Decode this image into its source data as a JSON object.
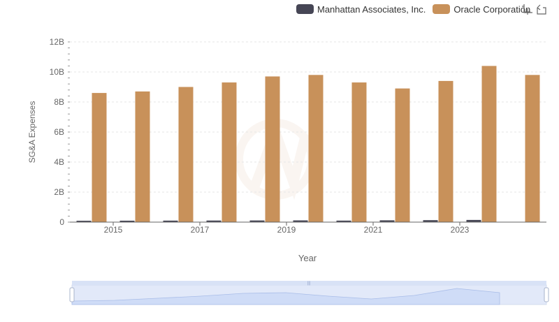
{
  "legend": {
    "items": [
      {
        "label": "Manhattan Associates, Inc.",
        "color": "#464655"
      },
      {
        "label": "Oracle Corporation",
        "color": "#c8915a"
      }
    ]
  },
  "toolbox": {
    "icons": [
      "zoom-icon",
      "restore-icon"
    ]
  },
  "chart_data": {
    "type": "bar",
    "xlabel": "Year",
    "ylabel": "SG&A Expenses",
    "ylim": [
      0,
      12000000000
    ],
    "y_ticks": [
      "0",
      "2B",
      "4B",
      "6B",
      "8B",
      "10B",
      "12B"
    ],
    "x_tick_labels": [
      "2015",
      "2017",
      "2019",
      "2021",
      "2023"
    ],
    "categories": [
      "2014",
      "2015",
      "2016",
      "2017",
      "2018",
      "2019",
      "2020",
      "2021",
      "2022",
      "2023",
      "2024"
    ],
    "series": [
      {
        "name": "Manhattan Associates, Inc.",
        "color": "#464655",
        "values": [
          90000000,
          95000000,
          100000000,
          105000000,
          110000000,
          115000000,
          100000000,
          120000000,
          130000000,
          145000000,
          null
        ]
      },
      {
        "name": "Oracle Corporation",
        "color": "#c8915a",
        "values": [
          8600000000,
          8700000000,
          9000000000,
          9300000000,
          9700000000,
          9800000000,
          9300000000,
          8900000000,
          9400000000,
          10400000000,
          9800000000
        ]
      }
    ],
    "grid": true,
    "legend_position": "top-right",
    "datazoom": {
      "start": 0,
      "end": 100
    }
  }
}
